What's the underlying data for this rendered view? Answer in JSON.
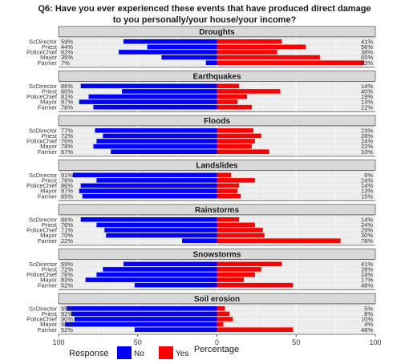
{
  "chart_data": {
    "type": "bar",
    "layout": "diverging-faceted",
    "title_line1": "Q6: Have you ever experienced these events that have produced direct damage",
    "title_line2": "to you personally/your house/your income?",
    "xlabel": "Percentage",
    "xlim": [
      -100,
      100
    ],
    "x_ticks": [
      -100,
      -50,
      0,
      50,
      100
    ],
    "x_tick_labels": [
      "100",
      "50",
      "0",
      "50",
      "100"
    ],
    "legend": {
      "title": "Response",
      "position": "bottom",
      "items": [
        {
          "label": "No",
          "color": "#0000ff"
        },
        {
          "label": "Yes",
          "color": "#ff0000"
        }
      ]
    },
    "grid": true,
    "categories": [
      "ScDirector",
      "Priest",
      "PoliceChief",
      "Mayor",
      "Farmer"
    ],
    "panels": [
      {
        "title": "Droughts",
        "no": [
          59,
          44,
          62,
          35,
          7
        ],
        "yes": [
          41,
          56,
          38,
          65,
          93
        ],
        "no_labels": [
          "59%",
          "44%",
          "62%",
          "35%",
          "7%"
        ],
        "yes_labels": [
          "41%",
          "56%",
          "38%",
          "65%",
          "93%"
        ]
      },
      {
        "title": "Earthquakes",
        "no": [
          86,
          60,
          81,
          87,
          78
        ],
        "yes": [
          14,
          40,
          19,
          13,
          22
        ],
        "no_labels": [
          "86%",
          "60%",
          "81%",
          "87%",
          "78%"
        ],
        "yes_labels": [
          "14%",
          "40%",
          "19%",
          "13%",
          "22%"
        ]
      },
      {
        "title": "Floods",
        "no": [
          77,
          72,
          76,
          78,
          67
        ],
        "yes": [
          23,
          28,
          24,
          22,
          33
        ],
        "no_labels": [
          "77%",
          "72%",
          "76%",
          "78%",
          "67%"
        ],
        "yes_labels": [
          "23%",
          "28%",
          "24%",
          "22%",
          "33%"
        ]
      },
      {
        "title": "Landslides",
        "no": [
          91,
          76,
          86,
          87,
          85
        ],
        "yes": [
          9,
          24,
          14,
          13,
          15
        ],
        "no_labels": [
          "91%",
          "76%",
          "86%",
          "87%",
          "85%"
        ],
        "yes_labels": [
          "9%",
          "24%",
          "14%",
          "13%",
          "15%"
        ]
      },
      {
        "title": "Rainstorms",
        "no": [
          86,
          76,
          71,
          70,
          22
        ],
        "yes": [
          14,
          24,
          29,
          30,
          78
        ],
        "no_labels": [
          "86%",
          "76%",
          "71%",
          "70%",
          "22%"
        ],
        "yes_labels": [
          "14%",
          "24%",
          "29%",
          "30%",
          "78%"
        ]
      },
      {
        "title": "Snowstorms",
        "no": [
          59,
          72,
          76,
          83,
          52
        ],
        "yes": [
          41,
          28,
          24,
          17,
          48
        ],
        "no_labels": [
          "59%",
          "72%",
          "76%",
          "83%",
          "52%"
        ],
        "yes_labels": [
          "41%",
          "28%",
          "24%",
          "17%",
          "48%"
        ]
      },
      {
        "title": "Soil erosion",
        "no": [
          95,
          92,
          90,
          96,
          52
        ],
        "yes": [
          5,
          8,
          10,
          4,
          48
        ],
        "no_labels": [
          "95%",
          "92%",
          "90%",
          "96%",
          "52%"
        ],
        "yes_labels": [
          "5%",
          "8%",
          "10%",
          "4%",
          "48%"
        ]
      }
    ]
  }
}
